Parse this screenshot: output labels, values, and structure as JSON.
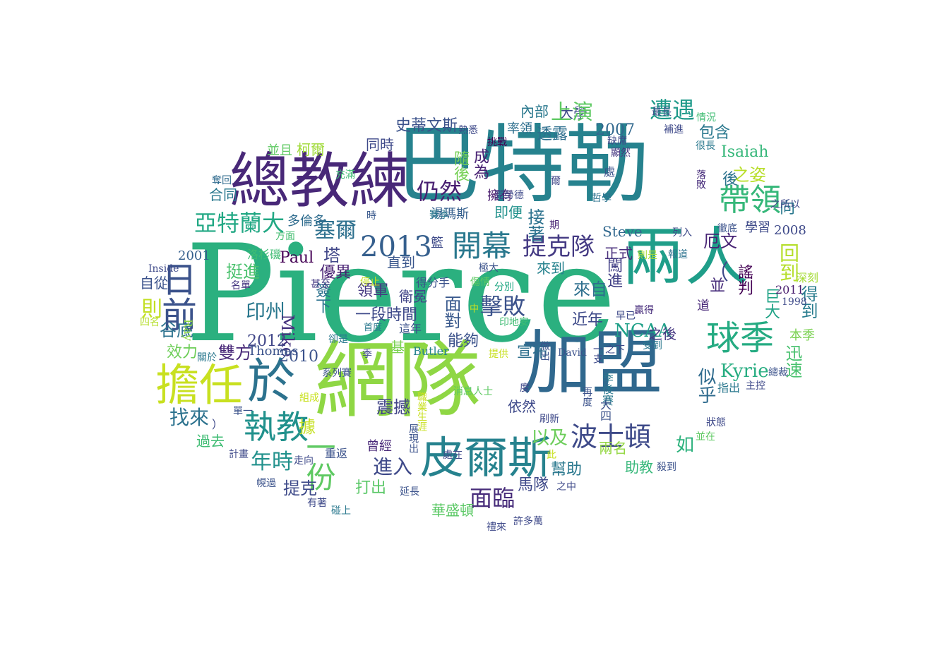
{
  "cloud": {
    "words": [
      {
        "t": "Pierce",
        "c": "#2bb07f"
      },
      {
        "t": "巴特勒",
        "c": "#26828e"
      },
      {
        "t": "網隊",
        "c": "#8fd744"
      },
      {
        "t": "加盟",
        "c": "#30688e"
      },
      {
        "t": "總教練",
        "c": "#482878"
      },
      {
        "t": "兩人",
        "c": "#1f9e89"
      },
      {
        "t": "皮爾斯",
        "c": "#26828e"
      },
      {
        "t": "擔任",
        "c": "#c8e020"
      },
      {
        "t": "於",
        "c": "#2c728e"
      },
      {
        "t": "球季",
        "c": "#25ab82"
      },
      {
        "t": "執教",
        "c": "#21918c"
      },
      {
        "t": "日前",
        "c": "#3b528b"
      },
      {
        "t": "帶領",
        "c": "#35b779"
      },
      {
        "t": "開幕",
        "c": "#2a788e"
      },
      {
        "t": "波士頓",
        "c": "#3e4a89"
      },
      {
        "t": "提克隊",
        "c": "#443a83"
      },
      {
        "t": "亞特蘭大",
        "c": "#22a884"
      },
      {
        "t": "2013",
        "c": "#355f8d"
      },
      {
        "t": "仍然",
        "c": "#481f71"
      },
      {
        "t": "一份",
        "c": "#5ec962"
      },
      {
        "t": "擊敗",
        "c": "#3b528b"
      },
      {
        "t": "面臨",
        "c": "#472c7a"
      },
      {
        "t": "遭遇",
        "c": "#1f9a8a"
      },
      {
        "t": "塞爾",
        "c": "#2d708e"
      },
      {
        "t": "印州",
        "c": "#2a788e"
      },
      {
        "t": "找來",
        "c": "#2c728e"
      },
      {
        "t": "年時",
        "c": "#21918c"
      },
      {
        "t": "進入",
        "c": "#3e4989"
      },
      {
        "t": "以及",
        "c": "#6ccd5a"
      },
      {
        "t": "如",
        "c": "#2db27d"
      },
      {
        "t": "Kyrie",
        "c": "#27ad81"
      },
      {
        "t": "NCAA",
        "c": "#1fa088"
      },
      {
        "t": "回到",
        "c": "#b5de2b"
      },
      {
        "t": "Paul",
        "c": "#440154"
      },
      {
        "t": "Mike",
        "c": "#46327e"
      },
      {
        "t": "Steve",
        "c": "#31688e"
      },
      {
        "t": "2012",
        "c": "#404688"
      },
      {
        "t": "2010",
        "c": "#3b528b"
      },
      {
        "t": "2007",
        "c": "#31688e"
      },
      {
        "t": "2008",
        "c": "#3e4989"
      },
      {
        "t": "2001",
        "c": "#355f8d"
      },
      {
        "t": "史蒂文斯",
        "c": "#3b528b"
      },
      {
        "t": "並且",
        "c": "#5ec962"
      },
      {
        "t": "柯爾",
        "c": "#a0da39"
      },
      {
        "t": "同時",
        "c": "#3e4989"
      },
      {
        "t": "湯瑪斯",
        "c": "#355f8d"
      },
      {
        "t": "即便",
        "c": "#21918c"
      },
      {
        "t": "接著",
        "c": "#2c728e"
      },
      {
        "t": "成為",
        "c": "#482173"
      },
      {
        "t": "隨後",
        "c": "#75d054"
      },
      {
        "t": "透露",
        "c": "#2e6f8e"
      },
      {
        "t": "內部",
        "c": "#2a788e"
      },
      {
        "t": "大學",
        "c": "#3e4a89"
      },
      {
        "t": "包含",
        "c": "#2a788e"
      },
      {
        "t": "之姿",
        "c": "#b8de29"
      },
      {
        "t": "厄文",
        "c": "#482475"
      },
      {
        "t": "謠判",
        "c": "#440154"
      },
      {
        "t": "得到",
        "c": "#287c8e"
      },
      {
        "t": "巨大",
        "c": "#20a386"
      },
      {
        "t": "迅速",
        "c": "#48c16e"
      },
      {
        "t": "本季",
        "c": "#7ad151"
      },
      {
        "t": "似乎",
        "c": "#2f6b8e"
      },
      {
        "t": "來自",
        "c": "#2e6f8e"
      },
      {
        "t": "近年",
        "c": "#3e4a89"
      },
      {
        "t": "之後",
        "c": "#453781"
      },
      {
        "t": "宣布",
        "c": "#2e6f8e"
      },
      {
        "t": "能夠",
        "c": "#3b528b"
      },
      {
        "t": "面對",
        "c": "#38588c"
      },
      {
        "t": "一段時間",
        "c": "#3e4989"
      },
      {
        "t": "直到",
        "c": "#39568c"
      },
      {
        "t": "衛冕",
        "c": "#414487"
      },
      {
        "t": "優異",
        "c": "#482173"
      },
      {
        "t": "挺進",
        "c": "#4ac16d"
      },
      {
        "t": "自從",
        "c": "#3b528b"
      },
      {
        "t": "則",
        "c": "#c2df23"
      },
      {
        "t": "谷底",
        "c": "#2c728e"
      },
      {
        "t": "效力",
        "c": "#6ece58"
      },
      {
        "t": "雙方",
        "c": "#482878"
      },
      {
        "t": "Thomas",
        "c": "#3b528b"
      },
      {
        "t": "Butler",
        "c": "#26828e"
      },
      {
        "t": "基",
        "c": "#7ad151"
      },
      {
        "t": "震撼",
        "c": "#414487"
      },
      {
        "t": "據",
        "c": "#c5e021"
      },
      {
        "t": "過去",
        "c": "#3fbc73"
      },
      {
        "t": "提克",
        "c": "#3e4a89"
      },
      {
        "t": "打出",
        "c": "#58c765"
      },
      {
        "t": "曾經",
        "c": "#482878"
      },
      {
        "t": "重返",
        "c": "#3b528b"
      },
      {
        "t": "華盛頓",
        "c": "#5ac864"
      },
      {
        "t": "馬隊",
        "c": "#3e4989"
      },
      {
        "t": "幫助",
        "c": "#2a788e"
      },
      {
        "t": "助教",
        "c": "#35b779"
      },
      {
        "t": "兩名",
        "c": "#93d741"
      },
      {
        "t": "依然",
        "c": "#3e4989"
      },
      {
        "t": "率領",
        "c": "#2e6f8e"
      },
      {
        "t": "向",
        "c": "#2a788e"
      },
      {
        "t": "並",
        "c": "#472d7b"
      },
      {
        "t": "道",
        "c": "#482878"
      },
      {
        "t": "學習",
        "c": "#3e4a89"
      },
      {
        "t": "深刻",
        "c": "#a5db36"
      },
      {
        "t": "指出",
        "c": "#2a788e"
      },
      {
        "t": "Isaiah",
        "c": "#35b779"
      },
      {
        "t": "後",
        "c": "#2c728e"
      },
      {
        "t": "塔",
        "c": "#404688"
      },
      {
        "t": "簽下",
        "c": "#2c728e"
      },
      {
        "t": "領軍",
        "c": "#453781"
      },
      {
        "t": "籃",
        "c": "#3e4a89"
      },
      {
        "t": "正式",
        "c": "#472d7b"
      },
      {
        "t": "來到",
        "c": "#26828e"
      },
      {
        "t": "闖進",
        "c": "#424086"
      },
      {
        "t": "擁有",
        "c": "#481b6d"
      },
      {
        "t": "多倫多",
        "c": "#2f6c8e"
      },
      {
        "t": "合同",
        "c": "#2a788e"
      },
      {
        "t": "時",
        "c": "#38588c"
      },
      {
        "t": "洛杉磯",
        "c": "#3fbc73"
      },
      {
        "t": "方面",
        "c": "#45be71"
      },
      {
        "t": "Ray",
        "c": "#8fd744"
      },
      {
        "t": "Hinkie",
        "c": "#3b528b"
      },
      {
        "t": "Inside",
        "c": "#3e4989"
      },
      {
        "t": "奪回",
        "c": "#2f6b8e"
      },
      {
        "t": "名單",
        "c": "#453781"
      },
      {
        "t": "四名",
        "c": "#b5de2b"
      },
      {
        "t": "甚至",
        "c": "#443a83"
      },
      {
        "t": "首度",
        "c": "#2a788e"
      },
      {
        "t": "這年",
        "c": "#3b528b"
      },
      {
        "t": "停止",
        "c": "#c2df23"
      },
      {
        "t": "得分手",
        "c": "#3b528b"
      },
      {
        "t": "傷情",
        "c": "#5ec962"
      },
      {
        "t": "中",
        "c": "#c8e020"
      },
      {
        "t": "印地安",
        "c": "#3fbc73"
      },
      {
        "t": "分別",
        "c": "#22a884"
      },
      {
        "t": "贏得",
        "c": "#472d7b"
      },
      {
        "t": "早已",
        "c": "#3e4989"
      },
      {
        "t": "則是",
        "c": "#a8db34"
      },
      {
        "t": "報道",
        "c": "#2c728e"
      },
      {
        "t": "列入",
        "c": "#3e4989"
      },
      {
        "t": "徹底",
        "c": "#3b528b"
      },
      {
        "t": "2011",
        "c": "#481c6e"
      },
      {
        "t": "1998",
        "c": "#3e4a89"
      },
      {
        "t": "哲學",
        "c": "#2c728e"
      },
      {
        "t": "之所以",
        "c": "#3e4989"
      },
      {
        "t": "落敗",
        "c": "#472d7b"
      },
      {
        "t": "最長",
        "c": "#3b528b"
      },
      {
        "t": "情況",
        "c": "#3fbc73"
      },
      {
        "t": "補進",
        "c": "#3e4989"
      },
      {
        "t": "很長",
        "c": "#2a788e"
      },
      {
        "t": "顯然",
        "c": "#453781"
      },
      {
        "t": "缺席",
        "c": "#3e4989"
      },
      {
        "t": "處",
        "c": "#3b528b"
      },
      {
        "t": "爾",
        "c": "#404688"
      },
      {
        "t": "克勞德",
        "c": "#3e4989"
      },
      {
        "t": "期",
        "c": "#482475"
      },
      {
        "t": "挑戰",
        "c": "#440154"
      },
      {
        "t": "熟悉",
        "c": "#3e4989"
      },
      {
        "t": "賽季",
        "c": "#2a788e"
      },
      {
        "t": "充滿",
        "c": "#3fbc73"
      },
      {
        "t": "極大",
        "c": "#3b528b"
      },
      {
        "t": "之下",
        "c": "#3e4989"
      },
      {
        "t": "一支",
        "c": "#3e4989"
      },
      {
        "t": "受到",
        "c": "#2a788e"
      },
      {
        "t": "David",
        "c": "#3b528b"
      },
      {
        "t": "做出",
        "c": "#3b528b"
      },
      {
        "t": "提供",
        "c": "#c8e020"
      },
      {
        "t": "卻是",
        "c": "#2a788e"
      },
      {
        "t": "季",
        "c": "#3e4989"
      },
      {
        "t": "系列賽",
        "c": "#3b528b"
      },
      {
        "t": "關於",
        "c": "#2a788e"
      },
      {
        "t": "組成",
        "c": "#c8e020"
      },
      {
        "t": "單一",
        "c": "#3b528b"
      },
      {
        "t": "計畫",
        "c": "#3e4989"
      },
      {
        "t": "幌過",
        "c": "#3b528b"
      },
      {
        "t": "走向",
        "c": "#3e4989"
      },
      {
        "t": "有著",
        "c": "#3e4989"
      },
      {
        "t": "碰上",
        "c": "#2a788e"
      },
      {
        "t": "延長",
        "c": "#3b528b"
      },
      {
        "t": "處在",
        "c": "#3e4989"
      },
      {
        "t": "展現出",
        "c": "#3b528b"
      },
      {
        "t": "職業生涯",
        "c": "#c8e020"
      },
      {
        "t": "消息人士",
        "c": "#5ec962"
      },
      {
        "t": "度",
        "c": "#3e4989"
      },
      {
        "t": "刷新",
        "c": "#3e4989"
      },
      {
        "t": "此",
        "c": "#c8e020"
      },
      {
        "t": "再度",
        "c": "#3b528b"
      },
      {
        "t": "季後賽",
        "c": "#2a788e"
      },
      {
        "t": "大四",
        "c": "#3b528b"
      },
      {
        "t": "之中",
        "c": "#3e4989"
      },
      {
        "t": "殺到",
        "c": "#3b528b"
      },
      {
        "t": "禮來",
        "c": "#3e4989"
      },
      {
        "t": "許多萬",
        "c": "#3e4989"
      },
      {
        "t": "並在",
        "c": "#5ec962"
      },
      {
        "t": "狀態",
        "c": "#3e4989"
      },
      {
        "t": "主控",
        "c": "#3e4989"
      },
      {
        "t": "總裁",
        "c": "#3b528b"
      },
      {
        "t": "上演",
        "c": "#5ec962"
      },
      {
        "t": "（",
        "c": "#3e4989"
      },
      {
        "t": "）",
        "c": "#3e4989"
      },
      {
        "t": "；",
        "c": "#3e4989"
      }
    ]
  }
}
